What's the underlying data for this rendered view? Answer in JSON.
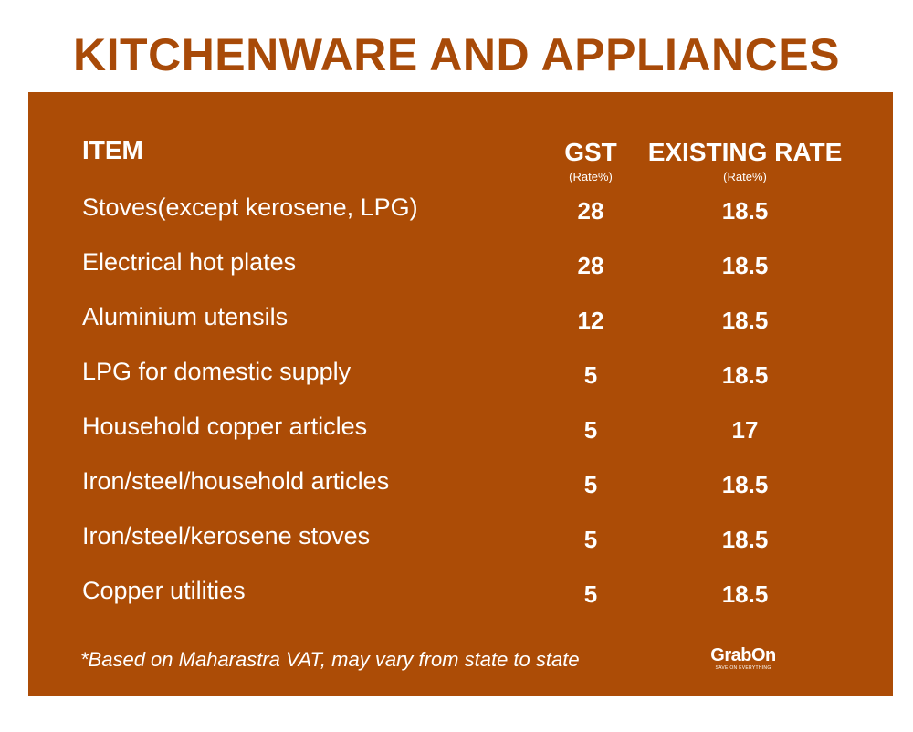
{
  "title": "KITCHENWARE AND APPLIANCES",
  "table": {
    "headers": {
      "item": "ITEM",
      "gst": "GST",
      "gst_sub": "(Rate%)",
      "existing": "EXISTING RATE",
      "existing_sub": "(Rate%)"
    },
    "rows": [
      {
        "item": "Stoves(except kerosene, LPG)",
        "gst": "28",
        "existing": "18.5"
      },
      {
        "item": "Electrical hot plates",
        "gst": "28",
        "existing": "18.5"
      },
      {
        "item": "Aluminium utensils",
        "gst": "12",
        "existing": "18.5"
      },
      {
        "item": "LPG for domestic supply",
        "gst": "5",
        "existing": "18.5"
      },
      {
        "item": "Household copper articles",
        "gst": "5",
        "existing": "17"
      },
      {
        "item": "Iron/steel/household articles",
        "gst": "5",
        "existing": "18.5"
      },
      {
        "item": "Iron/steel/kerosene stoves",
        "gst": "5",
        "existing": "18.5"
      },
      {
        "item": "Copper utilities",
        "gst": "5",
        "existing": "18.5"
      }
    ]
  },
  "footnote": "*Based on Maharastra VAT, may vary from state to state",
  "logo": {
    "name": "GrabOn",
    "tagline": "Save on everything"
  },
  "colors": {
    "title": "#a84a08",
    "panel": "#ac4c06",
    "text": "#ffffff"
  }
}
